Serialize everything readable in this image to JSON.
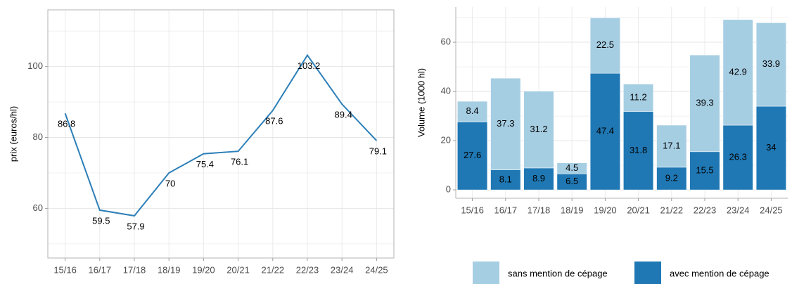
{
  "chart_data": [
    {
      "type": "line",
      "ylabel": "prix (euros/hl)",
      "categories": [
        "15/16",
        "16/17",
        "17/18",
        "18/19",
        "19/20",
        "20/21",
        "21/22",
        "22/23",
        "23/24",
        "24/25"
      ],
      "values": [
        86.8,
        59.5,
        57.9,
        70,
        75.4,
        76.1,
        87.6,
        103.2,
        89.4,
        79.1
      ],
      "color": "#2c7fb8",
      "ylim": [
        46,
        116
      ],
      "yticks": [
        60,
        80,
        100
      ],
      "grid": true
    },
    {
      "type": "stacked_bar",
      "ylabel": "Volume (1000 hl)",
      "categories": [
        "15/16",
        "16/17",
        "17/18",
        "18/19",
        "19/20",
        "20/21",
        "21/22",
        "22/23",
        "23/24",
        "24/25"
      ],
      "series": [
        {
          "name": "sans mention de cépage",
          "color": "#a6cee3",
          "values": [
            8.4,
            37.3,
            31.2,
            4.5,
            22.5,
            11.2,
            17.1,
            39.3,
            42.9,
            33.9
          ]
        },
        {
          "name": "avec mention de cépage",
          "color": "#1f78b4",
          "values": [
            27.6,
            8.1,
            8.9,
            6.5,
            47.4,
            31.8,
            9.2,
            15.5,
            26.3,
            34
          ]
        }
      ],
      "ylim": [
        -3.4,
        74.3
      ],
      "yticks": [
        0,
        20,
        40,
        60
      ],
      "grid": true,
      "legend": "bottom"
    }
  ]
}
